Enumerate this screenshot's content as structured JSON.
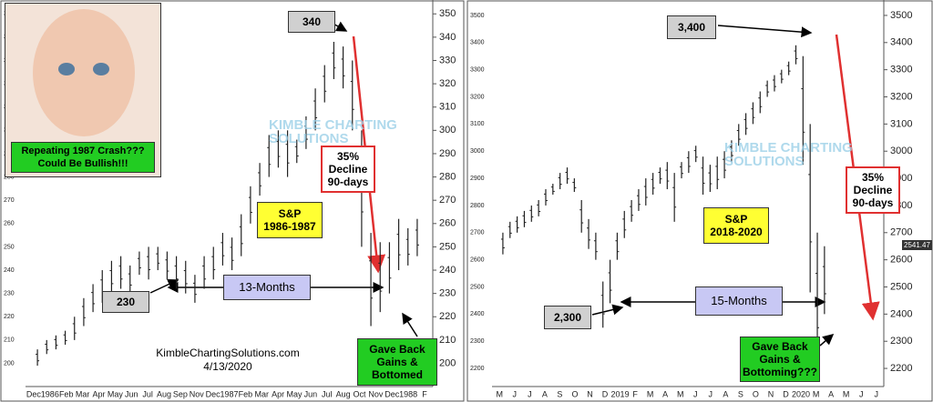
{
  "chart_data": [
    {
      "type": "range-bar",
      "categories": [
        "Dec",
        "1986",
        "Feb",
        "Mar",
        "Apr",
        "May",
        "Jun",
        "Jul",
        "Aug",
        "Sep",
        "Nov",
        "Dec",
        "1987",
        "Feb",
        "Mar",
        "Apr",
        "May",
        "Jun",
        "Jul",
        "Aug",
        "Oct",
        "Nov",
        "Dec",
        "1988",
        "F"
      ],
      "highs": [
        206,
        210,
        212,
        214,
        220,
        228,
        234,
        240,
        244,
        246,
        242,
        248,
        250,
        250,
        248,
        246,
        244,
        238,
        246,
        250,
        256,
        254,
        264,
        276,
        286,
        298,
        300,
        300,
        296,
        306,
        318,
        328,
        338,
        336,
        330,
        300,
        256,
        252,
        252,
        262,
        258,
        262
      ],
      "lows": [
        199,
        204,
        206,
        208,
        210,
        216,
        222,
        226,
        230,
        232,
        230,
        238,
        236,
        240,
        236,
        232,
        230,
        226,
        232,
        236,
        242,
        240,
        246,
        260,
        272,
        280,
        284,
        280,
        286,
        292,
        300,
        312,
        322,
        318,
        300,
        250,
        216,
        222,
        230,
        240,
        242,
        246
      ],
      "color": "#222222",
      "ylim": [
        192,
        354
      ],
      "yticks": [
        200,
        210,
        220,
        230,
        240,
        250,
        260,
        270,
        280,
        290,
        300,
        310,
        320,
        330,
        340,
        350
      ],
      "annotations": {
        "peak": "340",
        "decline": [
          "35%",
          "Decline",
          "90-days"
        ],
        "label": [
          "S&P",
          "1986-1987"
        ],
        "low": "230",
        "span": "13-Months",
        "bottom": [
          "Gave Back",
          "Gains &",
          "Bottomed"
        ],
        "site": "KimbleChartingSolutions.com",
        "date": "4/13/2020",
        "caption": [
          "Repeating 1987 Crash???",
          "Could Be Bullish!!!"
        ],
        "watermark": [
          "KIMBLE CHARTING",
          "SOLUTIONS"
        ]
      }
    },
    {
      "type": "range-bar",
      "categories": [
        "M",
        "J",
        "J",
        "A",
        "S",
        "O",
        "N",
        "D",
        "2019",
        "F",
        "M",
        "A",
        "M",
        "J",
        "J",
        "A",
        "S",
        "O",
        "N",
        "D",
        "2020",
        "M",
        "A",
        "M",
        "J",
        "J"
      ],
      "highs": [
        2700,
        2740,
        2760,
        2780,
        2800,
        2820,
        2860,
        2880,
        2920,
        2940,
        2900,
        2820,
        2750,
        2700,
        2520,
        2600,
        2700,
        2780,
        2820,
        2860,
        2900,
        2920,
        2940,
        2960,
        2920,
        2960,
        3000,
        3020,
        2980,
        2950,
        2980,
        3000,
        3040,
        3100,
        3140,
        3180,
        3220,
        3260,
        3280,
        3300,
        3330,
        3390,
        3350,
        3100,
        2700,
        2650
      ],
      "lows": [
        2620,
        2680,
        2700,
        2720,
        2740,
        2760,
        2800,
        2840,
        2860,
        2880,
        2850,
        2700,
        2640,
        2600,
        2350,
        2440,
        2600,
        2680,
        2740,
        2780,
        2800,
        2840,
        2880,
        2860,
        2740,
        2900,
        2920,
        2960,
        2840,
        2850,
        2860,
        2900,
        2960,
        3020,
        3060,
        3100,
        3140,
        3200,
        3220,
        3250,
        3280,
        3320,
        2950,
        2480,
        2200,
        2400
      ],
      "color": "#222222",
      "ylim": [
        2150,
        3540
      ],
      "yticks": [
        2200,
        2300,
        2400,
        2500,
        2600,
        2700,
        2800,
        2900,
        3000,
        3100,
        3200,
        3300,
        3400,
        3500
      ],
      "price_tag": "2541.47",
      "annotations": {
        "peak": "3,400",
        "decline": [
          "35%",
          "Decline",
          "90-days"
        ],
        "label": [
          "S&P",
          "2018-2020"
        ],
        "low": "2,300",
        "span": "15-Months",
        "bottom": [
          "Gave Back",
          "Gains &",
          "Bottoming???"
        ],
        "watermark": [
          "KIMBLE CHARTING",
          "SOLUTIONS"
        ]
      }
    }
  ]
}
